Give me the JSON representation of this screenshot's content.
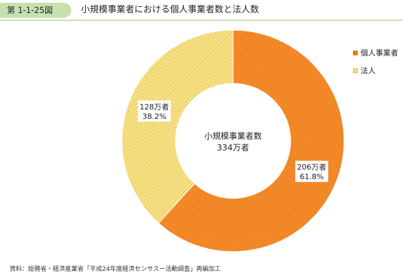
{
  "header": {
    "figure_number": "第 1-1-25図",
    "title": "小規模事業者における個人事業者数と法人数"
  },
  "chart_data": {
    "type": "pie",
    "donut": true,
    "center_label": "小規模事業者数",
    "center_value": "334万者",
    "total": 334,
    "unit": "万者",
    "slices": [
      {
        "name": "個人事業者",
        "value": 206,
        "value_label": "206万者",
        "percent_label": "61.8%",
        "percent": 61.8,
        "color": "#f07a10"
      },
      {
        "name": "法人",
        "value": 128,
        "value_label": "128万者",
        "percent_label": "38.2%",
        "percent": 38.2,
        "color": "#f5e07a"
      }
    ],
    "legend_position": "top-right"
  },
  "legend": {
    "items": [
      {
        "label": "個人事業者",
        "color": "#f07a10"
      },
      {
        "label": "法人",
        "color": "#f5e07a"
      }
    ]
  },
  "footer": {
    "source": "資料：総務省・経済産業省「平成24年度経済センサスー活動調査」再編加工"
  }
}
